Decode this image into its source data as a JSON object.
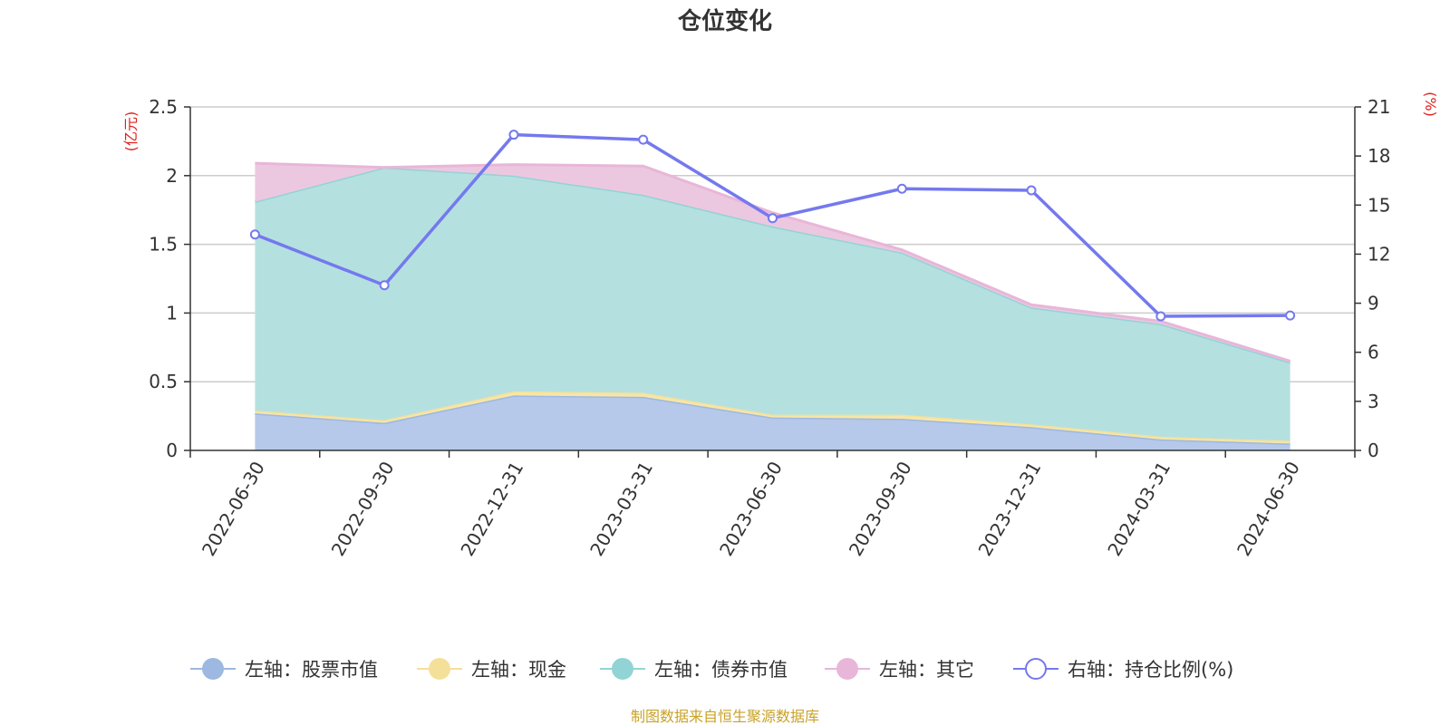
{
  "chart_data": {
    "type": "area",
    "title": "仓位变化",
    "y_left_unit": "(亿元)",
    "y_right_unit": "(%)",
    "categories": [
      "2022-06-30",
      "2022-09-30",
      "2022-12-31",
      "2023-03-31",
      "2023-06-30",
      "2023-09-30",
      "2023-12-31",
      "2024-03-31",
      "2024-06-30"
    ],
    "y_left": {
      "min": 0,
      "max": 2.5,
      "ticks": [
        0,
        0.5,
        1,
        1.5,
        2,
        2.5
      ],
      "tick_labels": [
        "0",
        "0.5",
        "1",
        "1.5",
        "2",
        "2.5"
      ]
    },
    "y_right": {
      "min": 0,
      "max": 21,
      "ticks": [
        0,
        3,
        6,
        9,
        12,
        15,
        18,
        21
      ],
      "tick_labels": [
        "0",
        "3",
        "6",
        "9",
        "12",
        "15",
        "18",
        "21"
      ]
    },
    "stacked_series": [
      {
        "name": "左轴：股票市值",
        "axis": "left",
        "color": "#9db8e1",
        "fill": "#b6c9ea",
        "values": [
          0.27,
          0.2,
          0.4,
          0.39,
          0.24,
          0.23,
          0.17,
          0.08,
          0.05
        ]
      },
      {
        "name": "左轴：现金",
        "axis": "left",
        "color": "#f5e09a",
        "fill": "#f7e6a8",
        "values": [
          0.02,
          0.02,
          0.03,
          0.03,
          0.02,
          0.03,
          0.02,
          0.02,
          0.02
        ]
      },
      {
        "name": "左轴：债券市值",
        "axis": "left",
        "color": "#92d3d6",
        "fill": "#b5e0e0",
        "values": [
          1.52,
          1.84,
          1.57,
          1.44,
          1.37,
          1.18,
          0.85,
          0.82,
          0.57
        ]
      },
      {
        "name": "左轴：其它",
        "axis": "left",
        "color": "#e8b6d8",
        "fill": "#ecc8e0",
        "values": [
          0.28,
          0.0,
          0.08,
          0.21,
          0.1,
          0.02,
          0.02,
          0.02,
          0.01
        ]
      }
    ],
    "line_series": [
      {
        "name": "右轴：持仓比例(%)",
        "axis": "right",
        "color": "#7479ee",
        "values": [
          13.2,
          10.1,
          19.3,
          19.0,
          14.2,
          16.0,
          15.9,
          8.2,
          8.25
        ]
      }
    ],
    "grid": true,
    "legend_position": "bottom"
  },
  "source_note": "制图数据来自恒生聚源数据库"
}
